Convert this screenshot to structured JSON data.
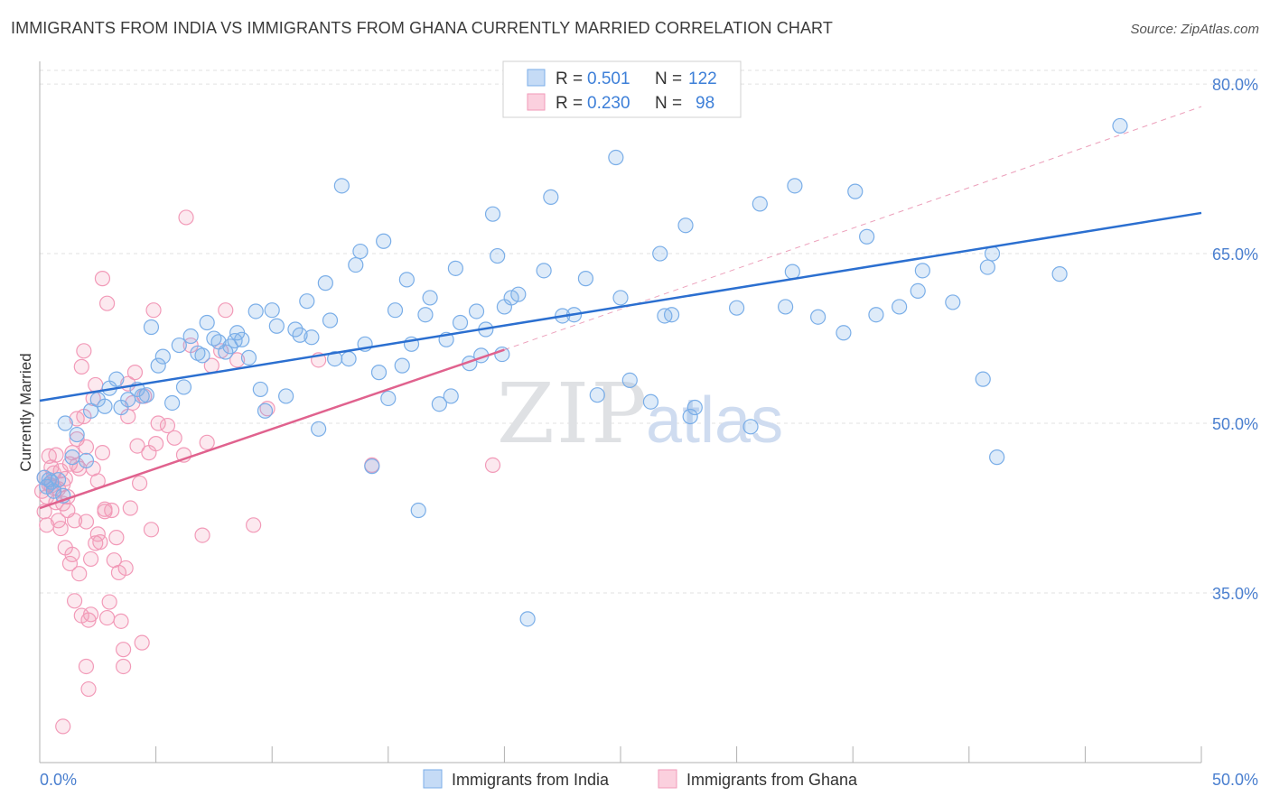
{
  "header": {
    "title": "IMMIGRANTS FROM INDIA VS IMMIGRANTS FROM GHANA CURRENTLY MARRIED CORRELATION CHART",
    "source": "Source: ZipAtlas.com"
  },
  "watermark": {
    "part1": "ZIP",
    "part2": "atlas"
  },
  "legend": {
    "rows": [
      {
        "r_label": "R =",
        "r_value": "0.501",
        "n_label": "N =",
        "n_value": "122",
        "color": "#7aaee8"
      },
      {
        "r_label": "R =",
        "r_value": "0.230",
        "n_label": "N =",
        "n_value": "98",
        "color": "#f29ab8"
      }
    ]
  },
  "bottom_legend": {
    "india": "Immigrants from India",
    "ghana": "Immigrants from Ghana"
  },
  "chart_data": {
    "type": "scatter",
    "title": "IMMIGRANTS FROM INDIA VS IMMIGRANTS FROM GHANA CURRENTLY MARRIED CORRELATION CHART",
    "ylabel": "Currently Married",
    "xlabel": "",
    "xlim": [
      0,
      50
    ],
    "ylim": [
      20,
      82
    ],
    "x_tick_labels": [
      "0.0%",
      "50.0%"
    ],
    "y_ticks": [
      35,
      50,
      65,
      80
    ],
    "y_tick_labels": [
      "35.0%",
      "50.0%",
      "65.0%",
      "80.0%"
    ],
    "grid": true,
    "legend_position": "top-center",
    "series": [
      {
        "name": "Immigrants from India",
        "color": "#7aaee8",
        "trend_color": "#2b6fd0",
        "r": 0.501,
        "n": 122,
        "trend": {
          "x": [
            0,
            50
          ],
          "y": [
            52.0,
            68.6
          ]
        },
        "points": [
          [
            0.2,
            45.2
          ],
          [
            0.3,
            44.4
          ],
          [
            0.4,
            45.0
          ],
          [
            0.5,
            44.8
          ],
          [
            0.6,
            44.0
          ],
          [
            0.8,
            45.0
          ],
          [
            1.0,
            43.6
          ],
          [
            1.1,
            50.0
          ],
          [
            1.4,
            47.0
          ],
          [
            1.6,
            49.0
          ],
          [
            2.0,
            46.7
          ],
          [
            2.2,
            51.1
          ],
          [
            2.5,
            52.1
          ],
          [
            2.8,
            51.5
          ],
          [
            3.0,
            53.1
          ],
          [
            3.3,
            53.9
          ],
          [
            3.5,
            51.4
          ],
          [
            3.8,
            52.1
          ],
          [
            4.2,
            53.0
          ],
          [
            4.4,
            52.4
          ],
          [
            4.6,
            52.5
          ],
          [
            4.8,
            58.5
          ],
          [
            5.1,
            55.1
          ],
          [
            5.3,
            55.9
          ],
          [
            5.7,
            51.8
          ],
          [
            6.0,
            56.9
          ],
          [
            6.2,
            53.2
          ],
          [
            6.5,
            57.7
          ],
          [
            6.8,
            56.2
          ],
          [
            7.0,
            56.0
          ],
          [
            7.2,
            58.9
          ],
          [
            7.5,
            57.5
          ],
          [
            7.7,
            57.2
          ],
          [
            8.0,
            56.3
          ],
          [
            8.2,
            56.8
          ],
          [
            8.4,
            57.3
          ],
          [
            8.5,
            58.0
          ],
          [
            8.7,
            57.4
          ],
          [
            9.0,
            55.8
          ],
          [
            9.3,
            59.9
          ],
          [
            9.5,
            53.0
          ],
          [
            9.7,
            51.1
          ],
          [
            10.2,
            58.6
          ],
          [
            10.0,
            60.0
          ],
          [
            10.6,
            52.4
          ],
          [
            11.0,
            58.3
          ],
          [
            11.2,
            57.8
          ],
          [
            11.5,
            60.8
          ],
          [
            11.7,
            57.6
          ],
          [
            12.0,
            49.5
          ],
          [
            12.3,
            62.4
          ],
          [
            12.5,
            59.1
          ],
          [
            12.7,
            55.7
          ],
          [
            13.0,
            71.0
          ],
          [
            13.3,
            55.7
          ],
          [
            13.6,
            64.0
          ],
          [
            13.8,
            65.2
          ],
          [
            14.0,
            57.0
          ],
          [
            14.3,
            46.2
          ],
          [
            14.6,
            54.5
          ],
          [
            14.8,
            66.1
          ],
          [
            15.0,
            52.2
          ],
          [
            15.3,
            60.0
          ],
          [
            15.6,
            55.1
          ],
          [
            15.8,
            62.7
          ],
          [
            16.0,
            57.0
          ],
          [
            16.3,
            42.3
          ],
          [
            16.6,
            59.6
          ],
          [
            16.8,
            61.1
          ],
          [
            17.2,
            51.7
          ],
          [
            17.5,
            57.4
          ],
          [
            17.7,
            52.4
          ],
          [
            17.9,
            63.7
          ],
          [
            18.1,
            58.9
          ],
          [
            18.5,
            55.3
          ],
          [
            18.8,
            59.9
          ],
          [
            19.0,
            56.0
          ],
          [
            19.2,
            58.3
          ],
          [
            19.5,
            68.5
          ],
          [
            19.7,
            64.8
          ],
          [
            19.9,
            56.1
          ],
          [
            20.3,
            61.1
          ],
          [
            20.6,
            61.4
          ],
          [
            20.0,
            60.3
          ],
          [
            21.0,
            32.7
          ],
          [
            21.7,
            63.5
          ],
          [
            22.0,
            70.0
          ],
          [
            22.5,
            59.5
          ],
          [
            23.0,
            59.6
          ],
          [
            23.5,
            62.8
          ],
          [
            24.0,
            52.5
          ],
          [
            24.8,
            73.5
          ],
          [
            25.0,
            61.1
          ],
          [
            25.4,
            53.8
          ],
          [
            26.3,
            51.9
          ],
          [
            26.7,
            65.0
          ],
          [
            26.9,
            59.5
          ],
          [
            27.2,
            59.6
          ],
          [
            27.8,
            67.5
          ],
          [
            28.0,
            50.6
          ],
          [
            28.2,
            51.4
          ],
          [
            30.0,
            60.2
          ],
          [
            30.6,
            49.7
          ],
          [
            31.0,
            69.4
          ],
          [
            32.1,
            60.3
          ],
          [
            32.4,
            63.4
          ],
          [
            32.5,
            71.0
          ],
          [
            33.5,
            59.4
          ],
          [
            34.6,
            58.0
          ],
          [
            35.1,
            70.5
          ],
          [
            35.6,
            66.5
          ],
          [
            36.0,
            59.6
          ],
          [
            37.0,
            60.3
          ],
          [
            38.0,
            63.5
          ],
          [
            37.8,
            61.7
          ],
          [
            39.3,
            60.7
          ],
          [
            40.6,
            53.9
          ],
          [
            40.8,
            63.8
          ],
          [
            41.0,
            65.0
          ],
          [
            41.2,
            47.0
          ],
          [
            43.9,
            63.2
          ],
          [
            46.5,
            76.3
          ]
        ]
      },
      {
        "name": "Immigrants from Ghana",
        "color": "#f29ab8",
        "trend_color": "#e0628e",
        "r": 0.23,
        "n": 98,
        "trend": {
          "x": [
            0,
            20
          ],
          "y": [
            42.5,
            56.5
          ]
        },
        "trend_extension": {
          "x": [
            20,
            50
          ],
          "y": [
            56.5,
            78.0
          ]
        },
        "points": [
          [
            0.1,
            44.0
          ],
          [
            0.2,
            42.2
          ],
          [
            0.2,
            45.2
          ],
          [
            0.3,
            41.0
          ],
          [
            0.3,
            43.5
          ],
          [
            0.4,
            44.6
          ],
          [
            0.4,
            47.1
          ],
          [
            0.5,
            46.1
          ],
          [
            0.5,
            44.5
          ],
          [
            0.6,
            45.6
          ],
          [
            0.7,
            47.2
          ],
          [
            0.7,
            43.0
          ],
          [
            0.8,
            44.2
          ],
          [
            0.8,
            41.4
          ],
          [
            0.9,
            45.8
          ],
          [
            0.9,
            40.7
          ],
          [
            1.0,
            42.9
          ],
          [
            1.0,
            44.6
          ],
          [
            1.1,
            45.1
          ],
          [
            1.1,
            39.0
          ],
          [
            1.2,
            43.5
          ],
          [
            1.2,
            42.3
          ],
          [
            1.3,
            46.4
          ],
          [
            1.3,
            37.6
          ],
          [
            1.4,
            47.4
          ],
          [
            1.4,
            38.4
          ],
          [
            1.5,
            41.4
          ],
          [
            1.5,
            34.3
          ],
          [
            1.6,
            50.4
          ],
          [
            1.6,
            48.6
          ],
          [
            1.7,
            36.7
          ],
          [
            1.7,
            46.0
          ],
          [
            1.8,
            55.0
          ],
          [
            1.8,
            33.0
          ],
          [
            1.9,
            56.4
          ],
          [
            1.9,
            50.6
          ],
          [
            2.0,
            41.3
          ],
          [
            2.0,
            28.5
          ],
          [
            2.1,
            32.6
          ],
          [
            2.1,
            26.5
          ],
          [
            2.2,
            33.1
          ],
          [
            2.2,
            38.0
          ],
          [
            2.3,
            46.0
          ],
          [
            2.3,
            52.2
          ],
          [
            2.4,
            53.4
          ],
          [
            2.4,
            39.4
          ],
          [
            2.5,
            40.2
          ],
          [
            2.5,
            44.9
          ],
          [
            2.6,
            39.5
          ],
          [
            2.7,
            62.8
          ],
          [
            2.7,
            47.4
          ],
          [
            2.8,
            42.2
          ],
          [
            2.8,
            42.4
          ],
          [
            2.9,
            60.6
          ],
          [
            2.9,
            32.8
          ],
          [
            3.0,
            34.2
          ],
          [
            3.1,
            42.3
          ],
          [
            3.2,
            37.9
          ],
          [
            3.3,
            39.9
          ],
          [
            3.4,
            36.8
          ],
          [
            3.5,
            32.5
          ],
          [
            3.6,
            28.5
          ],
          [
            3.6,
            30.0
          ],
          [
            3.7,
            37.2
          ],
          [
            3.8,
            53.5
          ],
          [
            3.8,
            50.6
          ],
          [
            3.9,
            42.5
          ],
          [
            4.0,
            51.8
          ],
          [
            4.1,
            54.5
          ],
          [
            4.2,
            48.0
          ],
          [
            4.3,
            44.7
          ],
          [
            4.4,
            30.6
          ],
          [
            4.5,
            52.4
          ],
          [
            4.7,
            47.4
          ],
          [
            4.8,
            40.6
          ],
          [
            4.9,
            60.0
          ],
          [
            5.0,
            48.2
          ],
          [
            5.1,
            50.0
          ],
          [
            5.5,
            49.8
          ],
          [
            5.8,
            48.7
          ],
          [
            6.2,
            47.2
          ],
          [
            6.3,
            68.2
          ],
          [
            6.5,
            56.9
          ],
          [
            7.0,
            40.1
          ],
          [
            7.2,
            48.3
          ],
          [
            7.4,
            55.1
          ],
          [
            7.8,
            56.4
          ],
          [
            8.0,
            60.0
          ],
          [
            8.5,
            55.6
          ],
          [
            9.2,
            41.0
          ],
          [
            9.8,
            51.3
          ],
          [
            12.0,
            55.6
          ],
          [
            14.3,
            46.3
          ],
          [
            19.5,
            46.3
          ],
          [
            1.0,
            23.2
          ],
          [
            0.6,
            44.3
          ],
          [
            1.6,
            46.3
          ],
          [
            2.0,
            47.9
          ]
        ]
      }
    ]
  }
}
